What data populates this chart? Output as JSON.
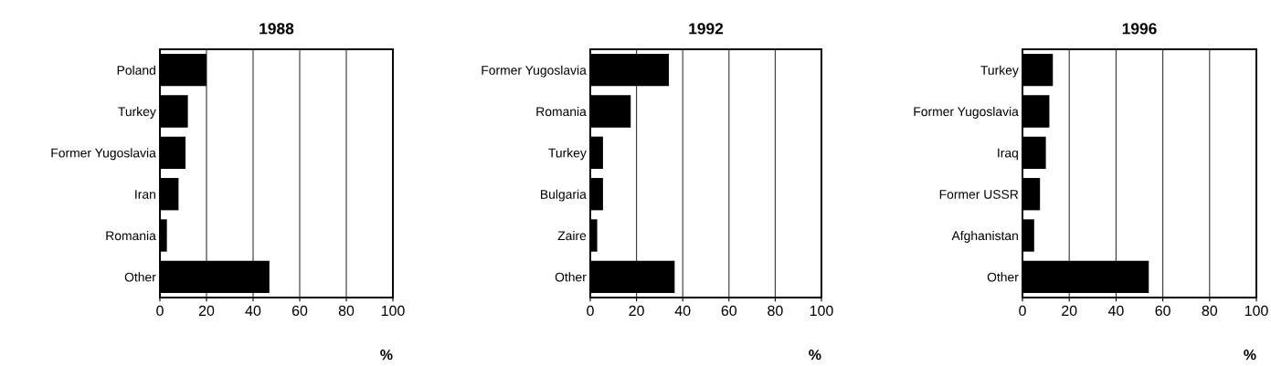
{
  "chart_data": [
    {
      "type": "bar",
      "orientation": "horizontal",
      "title": "1988",
      "xlabel": "%",
      "categories": [
        "Poland",
        "Turkey",
        "Former Yugoslavia",
        "Iran",
        "Romania",
        "Other"
      ],
      "values": [
        20,
        12,
        11,
        8,
        3,
        47
      ],
      "color": "#000000",
      "xlim": [
        0,
        100
      ],
      "xticks": [
        0,
        20,
        40,
        60,
        80,
        100
      ],
      "grid": "x"
    },
    {
      "type": "bar",
      "orientation": "horizontal",
      "title": "1992",
      "xlabel": "%",
      "categories": [
        "Former Yugoslavia",
        "Romania",
        "Turkey",
        "Bulgaria",
        "Zaire",
        "Other"
      ],
      "values": [
        34,
        17.5,
        5.5,
        5.5,
        3,
        36.5
      ],
      "color": "#000000",
      "xlim": [
        0,
        100
      ],
      "xticks": [
        0,
        20,
        40,
        60,
        80,
        100
      ],
      "grid": "x"
    },
    {
      "type": "bar",
      "orientation": "horizontal",
      "title": "1996",
      "xlabel": "%",
      "categories": [
        "Turkey",
        "Former Yugoslavia",
        "Iraq",
        "Former USSR",
        "Afghanistan",
        "Other"
      ],
      "values": [
        13,
        11.5,
        10,
        7.5,
        5,
        54
      ],
      "color": "#000000",
      "xlim": [
        0,
        100
      ],
      "xticks": [
        0,
        20,
        40,
        60,
        80,
        100
      ],
      "grid": "x"
    }
  ]
}
